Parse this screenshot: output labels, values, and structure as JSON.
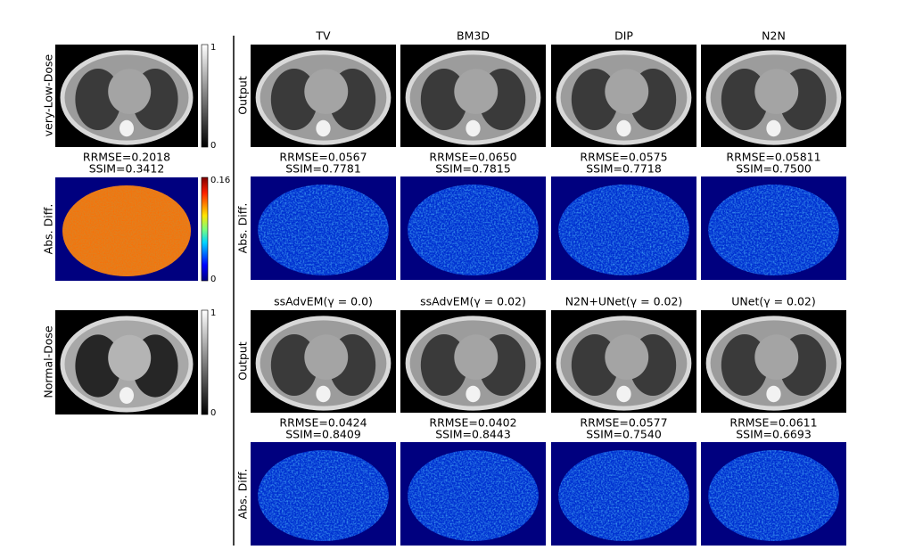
{
  "left": {
    "very_low_dose": {
      "label": "very-Low-Dose",
      "colorbar": {
        "max": 1,
        "min": 0
      }
    },
    "metrics": {
      "rrmse": "RRMSE=0.2018",
      "ssim": "SSIM=0.3412"
    },
    "abs_diff": {
      "label": "Abs. Diff.",
      "colorbar": {
        "max": 0.16,
        "min": 0
      }
    },
    "normal_dose": {
      "label": "Normal-Dose",
      "colorbar": {
        "max": 1,
        "min": 0
      }
    }
  },
  "blocks": [
    {
      "row_labels": [
        "Output",
        "Abs. Diff."
      ],
      "methods": [
        {
          "title": "TV",
          "rrmse": "RRMSE=0.0567",
          "ssim": "SSIM=0.7781"
        },
        {
          "title": "BM3D",
          "rrmse": "RRMSE=0.0650",
          "ssim": "SSIM=0.7815"
        },
        {
          "title": "DIP",
          "rrmse": "RRMSE=0.0575",
          "ssim": "SSIM=0.7718"
        },
        {
          "title": "N2N",
          "rrmse": "RRMSE=0.05811",
          "ssim": "SSIM=0.7500"
        }
      ]
    },
    {
      "row_labels": [
        "Output",
        "Abs. Diff."
      ],
      "methods": [
        {
          "title": "ssAdvEM(γ = 0.0)",
          "rrmse": "RRMSE=0.0424",
          "ssim": "SSIM=0.8409"
        },
        {
          "title": "ssAdvEM(γ = 0.02)",
          "rrmse": "RRMSE=0.0402",
          "ssim": "SSIM=0.8443"
        },
        {
          "title": "N2N+UNet(γ = 0.02)",
          "rrmse": "RRMSE=0.0577",
          "ssim": "SSIM=0.7540"
        },
        {
          "title": "UNet(γ = 0.02)",
          "rrmse": "RRMSE=0.0611",
          "ssim": "SSIM=0.6693"
        }
      ]
    }
  ]
}
